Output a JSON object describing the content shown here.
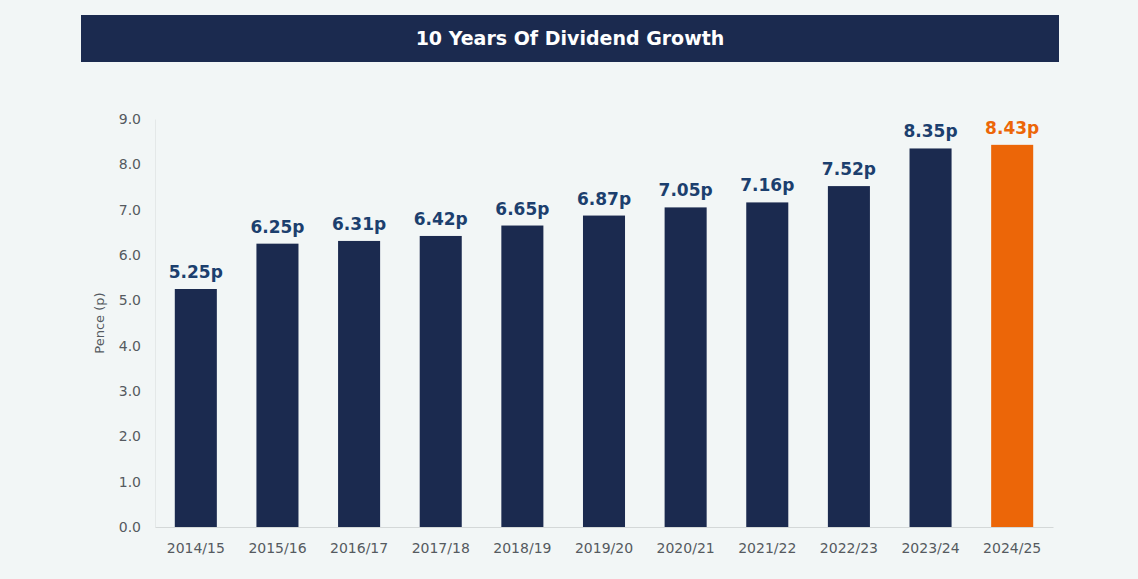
{
  "chart_data": {
    "type": "bar",
    "title": "10 Years Of Dividend Growth",
    "y_label": "Pence (p)",
    "categories": [
      "2014/15",
      "2015/16",
      "2016/17",
      "2017/18",
      "2018/19",
      "2019/20",
      "2020/21",
      "2021/22",
      "2022/23",
      "2023/24",
      "2024/25"
    ],
    "values": [
      5.25,
      6.25,
      6.31,
      6.42,
      6.65,
      6.87,
      7.05,
      7.16,
      7.52,
      8.35,
      8.43
    ],
    "value_labels": [
      "5.25p",
      "6.25p",
      "6.31p",
      "6.42p",
      "6.65p",
      "6.87p",
      "7.05p",
      "7.16p",
      "7.52p",
      "8.35p",
      "8.43p"
    ],
    "colors": [
      "#1b2a4f",
      "#1b2a4f",
      "#1b2a4f",
      "#1b2a4f",
      "#1b2a4f",
      "#1b2a4f",
      "#1b2a4f",
      "#1b2a4f",
      "#1b2a4f",
      "#1b2a4f",
      "#ec6608"
    ],
    "ylim": [
      0,
      9
    ],
    "yticks": [
      {
        "value": 0,
        "label": "0.0"
      },
      {
        "value": 1,
        "label": "1.0"
      },
      {
        "value": 2,
        "label": "2.0"
      },
      {
        "value": 3,
        "label": "3.0"
      },
      {
        "value": 4,
        "label": "4.0"
      },
      {
        "value": 5,
        "label": "5.0"
      },
      {
        "value": 6,
        "label": "6.0"
      },
      {
        "value": 7,
        "label": "7.0"
      },
      {
        "value": 8,
        "label": "8.0"
      },
      {
        "value": 9,
        "label": "9.0"
      }
    ],
    "grid": false,
    "data_labels": true
  }
}
